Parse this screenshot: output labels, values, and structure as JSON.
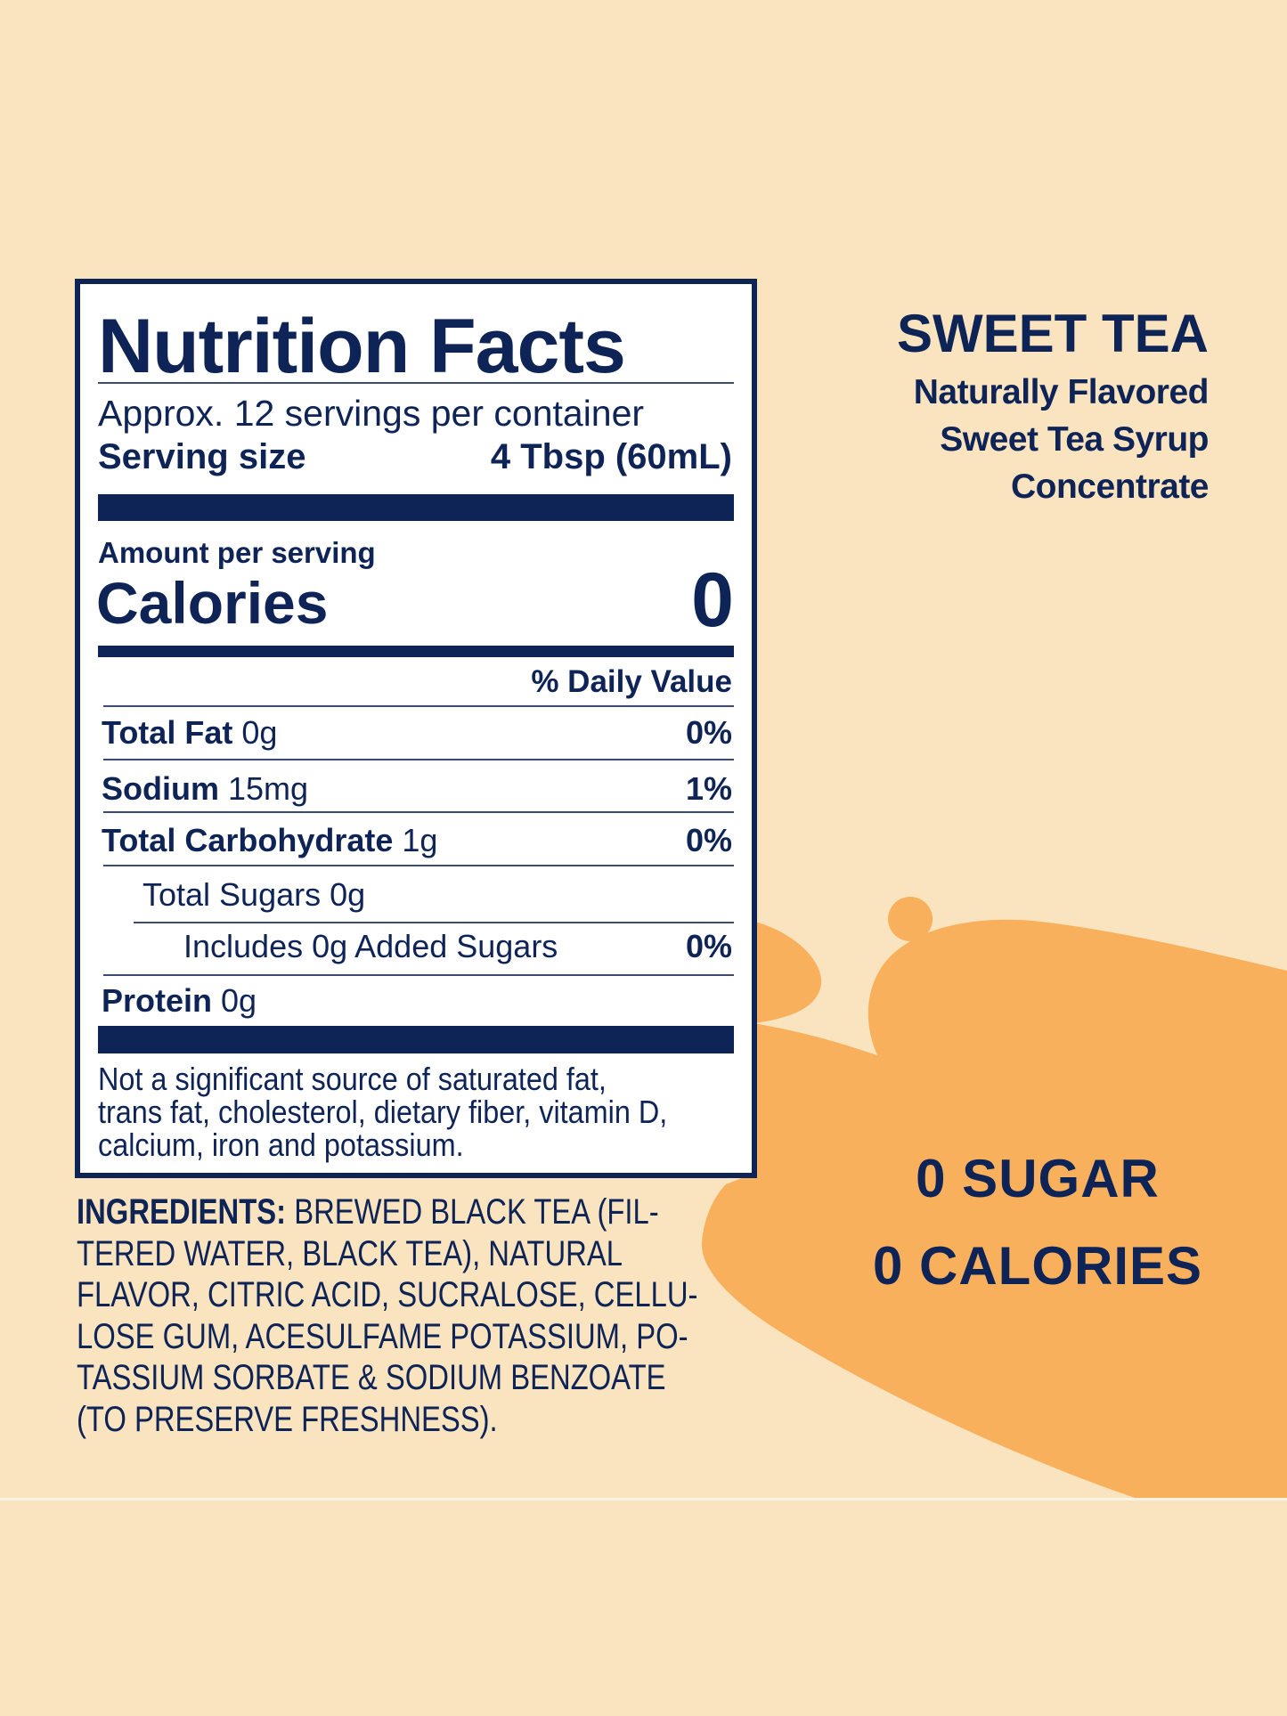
{
  "colors": {
    "background": "#f9e4bf",
    "navy": "#0e2356",
    "orange": "#f9b05c",
    "label_bg": "#ffffff"
  },
  "nutrition_facts": {
    "title": "Nutrition Facts",
    "servings": "Approx. 12 servings per container",
    "serving_size_label": "Serving size",
    "serving_size_value": "4 Tbsp (60mL)",
    "amount_per_serving": "Amount per serving",
    "calories_label": "Calories",
    "calories_value": "0",
    "daily_value_header": "% Daily Value",
    "rows": [
      {
        "name": "Total Fat",
        "amount": "0g",
        "dv": "0%"
      },
      {
        "name": "Sodium",
        "amount": "15mg",
        "dv": "1%"
      },
      {
        "name": "Total Carbohydrate",
        "amount": "1g",
        "dv": "0%"
      },
      {
        "name": "Total Sugars 0g",
        "amount": "",
        "dv": ""
      },
      {
        "name": "Includes 0g Added Sugars",
        "amount": "",
        "dv": "0%"
      },
      {
        "name": "Protein",
        "amount": "0g",
        "dv": ""
      }
    ],
    "footnote": [
      "Not a significant source of saturated fat,",
      "trans fat, cholesterol, dietary fiber, vitamin D,",
      "calcium, iron and potassium."
    ]
  },
  "ingredients": {
    "label": "INGREDIENTS:",
    "lines": [
      " BREWED BLACK TEA (FIL-",
      "TERED WATER, BLACK TEA), NATURAL",
      "FLAVOR, CITRIC ACID, SUCRALOSE, CELLU-",
      "LOSE GUM, ACESULFAME POTASSIUM, PO-",
      "TASSIUM SORBATE & SODIUM BENZOATE",
      "(TO PRESERVE FRESHNESS)."
    ]
  },
  "product": {
    "name": "SWEET TEA",
    "description": [
      "Naturally Flavored",
      "Sweet Tea Syrup",
      "Concentrate"
    ]
  },
  "claims": [
    "0 SUGAR",
    "0 CALORIES"
  ]
}
